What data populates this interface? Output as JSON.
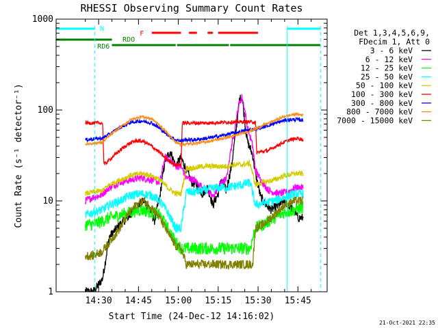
{
  "chart_data": {
    "type": "line",
    "title": "RHESSI Observing Summary Count Rates",
    "xlabel": "Start Time (24-Dec-12 14:16:02)",
    "ylabel": "Count Rate (s⁻¹ detector⁻¹)",
    "x_unit": "minutes after 14:16:02",
    "xlim": [
      -2,
      100
    ],
    "ylim": [
      1,
      1000
    ],
    "yscale": "log",
    "grid": false,
    "legend_position": "right",
    "xticks": [
      {
        "t": 14,
        "label": "14:30"
      },
      {
        "t": 29,
        "label": "14:45"
      },
      {
        "t": 44,
        "label": "15:00"
      },
      {
        "t": 59,
        "label": "15:15"
      },
      {
        "t": 74,
        "label": "15:30"
      },
      {
        "t": 89,
        "label": "15:45"
      }
    ],
    "yticks": [
      {
        "v": 1,
        "label": "1"
      },
      {
        "v": 10,
        "label": "10"
      },
      {
        "v": 100,
        "label": "100"
      },
      {
        "v": 1000,
        "label": "1000"
      }
    ],
    "legend_header": [
      "Det 1,3,4,5,6,9,",
      "FDecim 1, Att 0"
    ],
    "footer_stamp": "21-Oct-2021 22:35",
    "series": [
      {
        "name": "3 - 6 keV",
        "color": "#000000",
        "noise": 0.05,
        "x": [
          9,
          12,
          14,
          15.5,
          18,
          22,
          26,
          29,
          31,
          33,
          35,
          37,
          39,
          41,
          43,
          45,
          47,
          49,
          51,
          53,
          55,
          57,
          59,
          60,
          62,
          64,
          66,
          67,
          68,
          69,
          70,
          72,
          73,
          75,
          77,
          79,
          82,
          84,
          86,
          88,
          89,
          90,
          91
        ],
        "y": [
          1,
          1,
          1.2,
          1.4,
          4,
          5.5,
          7,
          9,
          10,
          8.5,
          6,
          11,
          28,
          35,
          24,
          30,
          22,
          16,
          15,
          12,
          14,
          9,
          12,
          17,
          13,
          24,
          70,
          130,
          140,
          75,
          45,
          32,
          20,
          11,
          9,
          8,
          9,
          10,
          8.5,
          7.5,
          6.5,
          6.5,
          6.5
        ]
      },
      {
        "name": "6 - 12 keV",
        "color": "#ff00ff",
        "noise": 0.04,
        "x": [
          9,
          12,
          15,
          15.5,
          18,
          22,
          26,
          30,
          34,
          37,
          39,
          41,
          43,
          45,
          47,
          50,
          52,
          55,
          57,
          59,
          60,
          62,
          64,
          65,
          66,
          67,
          68,
          69,
          70,
          72,
          73,
          75,
          78,
          82,
          85,
          88,
          89,
          90,
          91
        ],
        "y": [
          10,
          11,
          11.5,
          12,
          14,
          16,
          17,
          18,
          17,
          16,
          30,
          28,
          24,
          24,
          18,
          17,
          15,
          13,
          11,
          14,
          16,
          17,
          40,
          55,
          85,
          120,
          140,
          100,
          65,
          40,
          22,
          17,
          13,
          12,
          12.5,
          14,
          14,
          14,
          14
        ]
      },
      {
        "name": "12 - 25 keV",
        "color": "#00ff00",
        "noise": 0.07,
        "x": [
          9,
          12,
          15.5,
          18,
          22,
          26,
          30,
          34,
          37,
          40,
          43,
          45,
          47,
          50,
          53,
          57,
          59,
          62,
          65,
          68,
          71,
          73,
          76,
          80,
          84,
          88,
          91
        ],
        "y": [
          5.5,
          5.5,
          6,
          6.5,
          7,
          7.5,
          8,
          7.5,
          7,
          5,
          3.5,
          3,
          3,
          3,
          3,
          3,
          3,
          3,
          3,
          3,
          3,
          5,
          5.5,
          6.5,
          7.5,
          8,
          8.5
        ]
      },
      {
        "name": "25 - 50 keV",
        "color": "#00ffff",
        "noise": 0.05,
        "x": [
          9,
          12,
          15.5,
          18,
          22,
          26,
          30,
          34,
          37,
          40,
          43,
          45,
          47,
          50,
          53,
          56,
          59,
          62,
          65,
          68,
          71,
          73,
          76,
          80,
          84,
          88,
          91
        ],
        "y": [
          7,
          7.5,
          8,
          9,
          10,
          11.5,
          12,
          11.5,
          10,
          7.5,
          5,
          5,
          12.5,
          12.5,
          13,
          13.5,
          14,
          14,
          14.5,
          15,
          16,
          9,
          9.5,
          10,
          11,
          12,
          12
        ]
      },
      {
        "name": "50 - 100 keV",
        "color": "#d4cc00",
        "noise": 0.03,
        "x": [
          9,
          12,
          15.5,
          18,
          22,
          26,
          30,
          34,
          37,
          40,
          43,
          45,
          47,
          50,
          53,
          56,
          59,
          62,
          65,
          68,
          71,
          73,
          76,
          80,
          84,
          88,
          91
        ],
        "y": [
          12,
          12.5,
          13,
          15,
          17,
          19,
          20,
          19,
          17,
          14,
          12,
          12,
          23,
          23,
          24,
          24,
          24,
          24,
          25,
          25,
          26,
          15,
          16,
          17,
          19,
          20,
          20
        ]
      },
      {
        "name": "100 - 300 keV",
        "color": "#ff0000",
        "noise": 0.02,
        "x": [
          9,
          15.5,
          16,
          19,
          22,
          25,
          28,
          31,
          34,
          37,
          40,
          43,
          45,
          45.5,
          50,
          55,
          60,
          66,
          72,
          73,
          73.5,
          78,
          82,
          86,
          89,
          91
        ],
        "y": [
          72,
          72,
          25,
          30,
          36,
          42,
          46,
          45,
          40,
          34,
          28,
          25,
          25,
          72,
          72,
          72,
          73,
          74,
          74,
          74,
          34,
          36,
          42,
          47,
          49,
          47
        ]
      },
      {
        "name": "300 - 800 keV",
        "color": "#0000ff",
        "noise": 0.02,
        "x": [
          9,
          12,
          15.5,
          18,
          22,
          26,
          30,
          34,
          37,
          40,
          43,
          45,
          47,
          50,
          55,
          60,
          65,
          70,
          73,
          76,
          80,
          84,
          88,
          91
        ],
        "y": [
          47,
          48,
          49,
          54,
          64,
          73,
          76,
          72,
          63,
          53,
          47,
          46,
          47,
          47,
          49,
          52,
          56,
          60,
          62,
          65,
          71,
          77,
          79,
          77
        ]
      },
      {
        "name": "800 - 7000 keV",
        "color": "#ff8c1a",
        "noise": 0.015,
        "x": [
          9,
          12,
          15.5,
          18,
          22,
          26,
          30,
          34,
          37,
          40,
          43,
          45,
          47,
          50,
          55,
          60,
          65,
          70,
          73,
          76,
          80,
          84,
          88,
          91
        ],
        "y": [
          42,
          43,
          44,
          52,
          64,
          78,
          85,
          80,
          68,
          55,
          44,
          42,
          42,
          43,
          45,
          48,
          52,
          58,
          62,
          68,
          76,
          85,
          90,
          88
        ]
      },
      {
        "name": "7000 - 15000 keV",
        "color": "#808000",
        "noise": 0.05,
        "x": [
          9,
          12,
          15.5,
          18,
          22,
          25,
          28,
          31,
          34,
          37,
          40,
          43,
          45,
          47,
          50,
          53,
          57,
          60,
          63,
          66,
          69,
          72,
          73,
          76,
          80,
          84,
          88,
          91
        ],
        "y": [
          2.5,
          2.5,
          2.8,
          3.5,
          5,
          7,
          9,
          10,
          8.5,
          6.5,
          4.5,
          3.2,
          3,
          2,
          2,
          2,
          2,
          2,
          2,
          2,
          2,
          2,
          5,
          5.5,
          7,
          9,
          10,
          10
        ]
      }
    ],
    "state_bars": [
      {
        "label": "",
        "color": "#00ffff",
        "level": "top",
        "segments": [
          [
            -2,
            12.5
          ],
          [
            85,
            97.5
          ]
        ]
      },
      {
        "label": "N",
        "color": "#00ffff",
        "level": "top",
        "segments": []
      },
      {
        "label": "F",
        "color": "#ff0000",
        "level": "mid",
        "segments": [
          [
            34,
            45
          ],
          [
            48,
            51
          ],
          [
            55,
            57
          ],
          [
            59,
            74
          ]
        ]
      },
      {
        "label": "RDO",
        "color": "#008000",
        "level": "upper",
        "segments": [
          [
            -2,
            19
          ]
        ]
      },
      {
        "label": "RD6",
        "color": "#008000",
        "level": "lower",
        "segments": [
          [
            19,
            43
          ],
          [
            43.5,
            63
          ],
          [
            63.5,
            97.5
          ]
        ]
      }
    ],
    "markers": [
      {
        "t": 12.5,
        "color": "#00ffff",
        "style": "dashed"
      },
      {
        "t": 85,
        "color": "#00ffff",
        "style": "solid"
      },
      {
        "t": 97.5,
        "color": "#00ffff",
        "style": "dashed"
      }
    ]
  }
}
